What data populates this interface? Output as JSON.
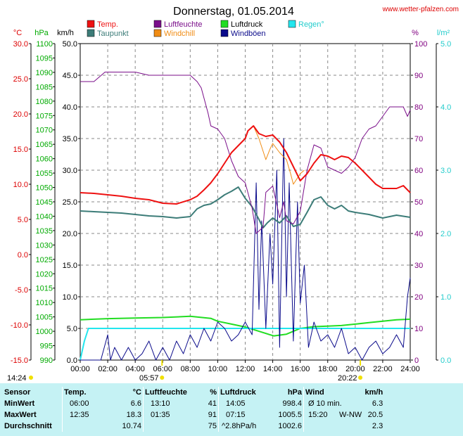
{
  "header": {
    "title": "Donnerstag, 01.05.2014",
    "site": "www.wetter-pfalzen.com"
  },
  "axes": {
    "left1_unit": "°C",
    "left2_unit": "hPa",
    "left3_unit": "km/h",
    "right1_unit": "%",
    "right2_unit": "l/m²"
  },
  "colors": {
    "temp": "#ee1111",
    "dew": "#3c7c78",
    "humidity": "#7a0e8a",
    "windchill": "#f08c14",
    "pressure": "#22dd22",
    "gust": "#0a0a8a",
    "rain": "#22e6ee",
    "temp_axis": "#dd0000",
    "pressure_axis": "#00aa00",
    "humidity_axis": "#800080",
    "rain_axis": "#22cccc"
  },
  "sun": {
    "sunrise_left": "14:24",
    "sunrise": "05:57",
    "sunset": "20:22"
  },
  "chart_data": {
    "type": "line",
    "title": "Donnerstag, 01.05.2014",
    "x_ticks": [
      "00:00",
      "02:00",
      "04:00",
      "06:00",
      "08:00",
      "10:00",
      "12:00",
      "14:00",
      "16:00",
      "18:00",
      "20:00",
      "22:00",
      "24:00"
    ],
    "xlim": [
      0,
      24
    ],
    "axes_left": {
      "temp_c": {
        "range": [
          -15,
          30
        ],
        "ticks": [
          "30.0",
          "25.0",
          "20.0",
          "15.0",
          "10.0",
          "5.0",
          "0.0",
          "-5.0",
          "-10.0",
          "-15.0"
        ]
      },
      "pressure_hpa": {
        "range": [
          990,
          1100
        ],
        "ticks": [
          "1100",
          "1095",
          "1090",
          "1085",
          "1080",
          "1075",
          "1070",
          "1065",
          "1060",
          "1055",
          "1050",
          "1045",
          "1040",
          "1035",
          "1030",
          "1025",
          "1020",
          "1015",
          "1010",
          "1005",
          "1000",
          "995",
          "990"
        ]
      },
      "wind_kmh": {
        "range": [
          0,
          50
        ],
        "ticks": [
          "50.0",
          "45.0",
          "40.0",
          "35.0",
          "30.0",
          "25.0",
          "20.0",
          "15.0",
          "10.0",
          "5.0",
          "0.0"
        ]
      }
    },
    "axes_right": {
      "humidity_pct": {
        "range": [
          0,
          100
        ],
        "ticks": [
          "100",
          "90",
          "80",
          "70",
          "60",
          "50",
          "40",
          "30",
          "20",
          "10",
          "0"
        ]
      },
      "rain_lm2": {
        "range": [
          0,
          5
        ],
        "ticks": [
          "5.0",
          "4.0",
          "3.0",
          "2.0",
          "1.0",
          "0.0"
        ]
      }
    },
    "legend": [
      "Temp.",
      "Luftfeuchte",
      "Luftdruck",
      "Regen°",
      "Taupunkt",
      "Windchill",
      "Windböen"
    ],
    "series": [
      {
        "name": "Temp.",
        "axis": "temp_c",
        "x": [
          0,
          1,
          2,
          3,
          4,
          5,
          6,
          7,
          8,
          8.5,
          9,
          9.5,
          10,
          10.5,
          11,
          11.5,
          12,
          12.2,
          12.6,
          13,
          13.5,
          14,
          14.5,
          15,
          15.5,
          16,
          16.5,
          17,
          17.5,
          18,
          18.5,
          19,
          19.5,
          20,
          20.5,
          21,
          21.5,
          22,
          23,
          23.5,
          24
        ],
        "y": [
          8.8,
          8.7,
          8.5,
          8.3,
          8.0,
          7.8,
          7.3,
          7.2,
          7.8,
          8.3,
          9.2,
          10.2,
          11.5,
          13.0,
          14.5,
          15.5,
          16.5,
          17.6,
          18.3,
          17.2,
          16.8,
          17.0,
          16.0,
          14.5,
          12.5,
          10.5,
          11.5,
          13.0,
          14.2,
          14.0,
          13.5,
          14.0,
          13.8,
          13.0,
          12.0,
          11.0,
          10.0,
          9.4,
          9.4,
          9.8,
          8.8
        ]
      },
      {
        "name": "Taupunkt",
        "axis": "temp_c",
        "x": [
          0,
          1,
          2,
          3,
          4,
          5,
          6,
          7,
          8,
          8.5,
          9,
          9.5,
          10,
          10.5,
          11,
          11.5,
          12,
          12.5,
          13,
          13.3,
          13.6,
          14,
          14.5,
          15,
          15.5,
          16,
          16.5,
          17,
          17.5,
          18,
          18.5,
          19,
          19.5,
          20,
          21,
          22,
          23,
          24
        ],
        "y": [
          6.2,
          6.1,
          6.0,
          5.9,
          5.7,
          5.5,
          5.4,
          5.2,
          5.4,
          6.5,
          7.0,
          7.2,
          7.8,
          8.5,
          9.0,
          9.6,
          8.0,
          6.8,
          5.0,
          3.8,
          4.5,
          5.2,
          4.5,
          5.5,
          4.0,
          4.3,
          6.0,
          7.8,
          8.2,
          7.0,
          6.5,
          7.0,
          6.2,
          6.0,
          5.7,
          5.2,
          5.6,
          5.3
        ]
      },
      {
        "name": "Luftfeuchte",
        "axis": "humidity_pct",
        "x": [
          0,
          1,
          1.8,
          2,
          3,
          4,
          5,
          6,
          7,
          8,
          8.5,
          8.8,
          9.3,
          9.5,
          10,
          10.5,
          11,
          11.5,
          12,
          12.5,
          12.8,
          13.3,
          13.5,
          14,
          14.5,
          14.8,
          15,
          15.5,
          16,
          16.5,
          17,
          17.5,
          18,
          18.5,
          19,
          19.5,
          20,
          20.5,
          21,
          21.5,
          22,
          22.5,
          23,
          23.5,
          23.8,
          24
        ],
        "y": [
          88,
          88,
          91,
          91,
          91,
          91,
          90,
          90,
          90,
          90,
          88,
          86,
          78,
          74,
          73,
          70,
          63,
          58,
          56,
          48,
          40,
          42,
          53,
          55,
          45,
          50,
          44,
          43,
          47,
          60,
          68,
          67,
          61,
          60,
          59,
          61,
          64,
          70,
          73,
          74,
          77,
          80,
          80,
          80,
          77,
          79
        ]
      },
      {
        "name": "Windchill",
        "axis": "temp_c",
        "x": [
          12.6,
          13.0,
          13.5,
          13.8,
          14.0,
          14.5,
          15.0,
          15.3,
          15.5,
          16.0,
          16.3
        ],
        "y": [
          18.3,
          16.5,
          13.5,
          15.0,
          15.8,
          14.5,
          13.5,
          11.5,
          10.0,
          11.5,
          12.0
        ]
      },
      {
        "name": "Luftdruck",
        "axis": "pressure_hpa",
        "x": [
          0,
          2,
          4,
          6,
          8,
          9.5,
          10,
          11,
          12,
          13,
          14,
          14.1,
          15,
          16,
          17,
          18,
          19,
          20,
          21,
          22,
          23,
          24
        ],
        "y": [
          1004.0,
          1004.4,
          1004.6,
          1004.8,
          1005.2,
          1004.5,
          1003.5,
          1002.5,
          1001.5,
          1000.0,
          998.5,
          998.4,
          999.0,
          1001.0,
          1001.6,
          1001.8,
          1002.0,
          1002.5,
          1003.0,
          1003.5,
          1004.0,
          1004.2
        ]
      },
      {
        "name": "Windböen",
        "axis": "wind_kmh",
        "x": [
          0,
          1,
          1.5,
          2,
          2.2,
          2.5,
          3,
          3.5,
          4,
          4.5,
          5,
          5.5,
          6,
          6.5,
          7,
          7.5,
          8,
          8.5,
          9,
          9.5,
          10,
          10.5,
          11,
          11.5,
          12,
          12.5,
          12.8,
          13,
          13.2,
          13.5,
          13.8,
          14,
          14.3,
          14.5,
          14.8,
          15,
          15.2,
          15.5,
          15.8,
          16,
          16.3,
          16.6,
          17,
          17.5,
          18,
          18.5,
          19,
          19.5,
          20,
          20.5,
          21,
          21.5,
          22,
          22.5,
          23,
          23.5,
          23.8,
          24
        ],
        "y": [
          0,
          0,
          0,
          4,
          0,
          2,
          0,
          2,
          0,
          1,
          3,
          0,
          2,
          0,
          3,
          1,
          4,
          2,
          5,
          3,
          6,
          5,
          3,
          4,
          6,
          4,
          28,
          8,
          22,
          5,
          20,
          12,
          30,
          2,
          35,
          10,
          28,
          3,
          25,
          9,
          15,
          2,
          6,
          3,
          4,
          2,
          5,
          1,
          2,
          0,
          2,
          3,
          1,
          2,
          4,
          2,
          10,
          13
        ]
      },
      {
        "name": "Regen°",
        "axis": "rain_lm2",
        "x": [
          0,
          0.3,
          0.6,
          1,
          24
        ],
        "y": [
          0,
          0.3,
          0.5,
          0.5,
          0.5
        ]
      }
    ]
  },
  "stats": {
    "header": {
      "sensor": "Sensor",
      "temp": "Temp.",
      "temp_unit": "°C",
      "hum": "Luftfeuchte",
      "hum_unit": "%",
      "press": "Luftdruck",
      "press_unit": "hPa",
      "wind": "Wind",
      "wind_unit": "km/h"
    },
    "rows": [
      {
        "label": "MinWert",
        "t_time": "06:00",
        "t_val": "6.6",
        "h_time": "13:10",
        "h_val": "41",
        "p_time": "14:05",
        "p_val": "998.4",
        "w_time": "Ø 10 min.",
        "w_dir": "",
        "w_val": "6.3"
      },
      {
        "label": "MaxWert",
        "t_time": "12:35",
        "t_val": "18.3",
        "h_time": "01:35",
        "h_val": "91",
        "p_time": "07:15",
        "p_val": "1005.5",
        "w_time": "15:20",
        "w_dir": "W-NW",
        "w_val": "20.5"
      },
      {
        "label": "Durchschnitt",
        "t_time": "",
        "t_val": "10.74",
        "h_time": "",
        "h_val": "75",
        "p_time": "^2.8hPa/h",
        "p_val": "1002.6",
        "w_time": "",
        "w_dir": "",
        "w_val": "2.3"
      }
    ]
  }
}
